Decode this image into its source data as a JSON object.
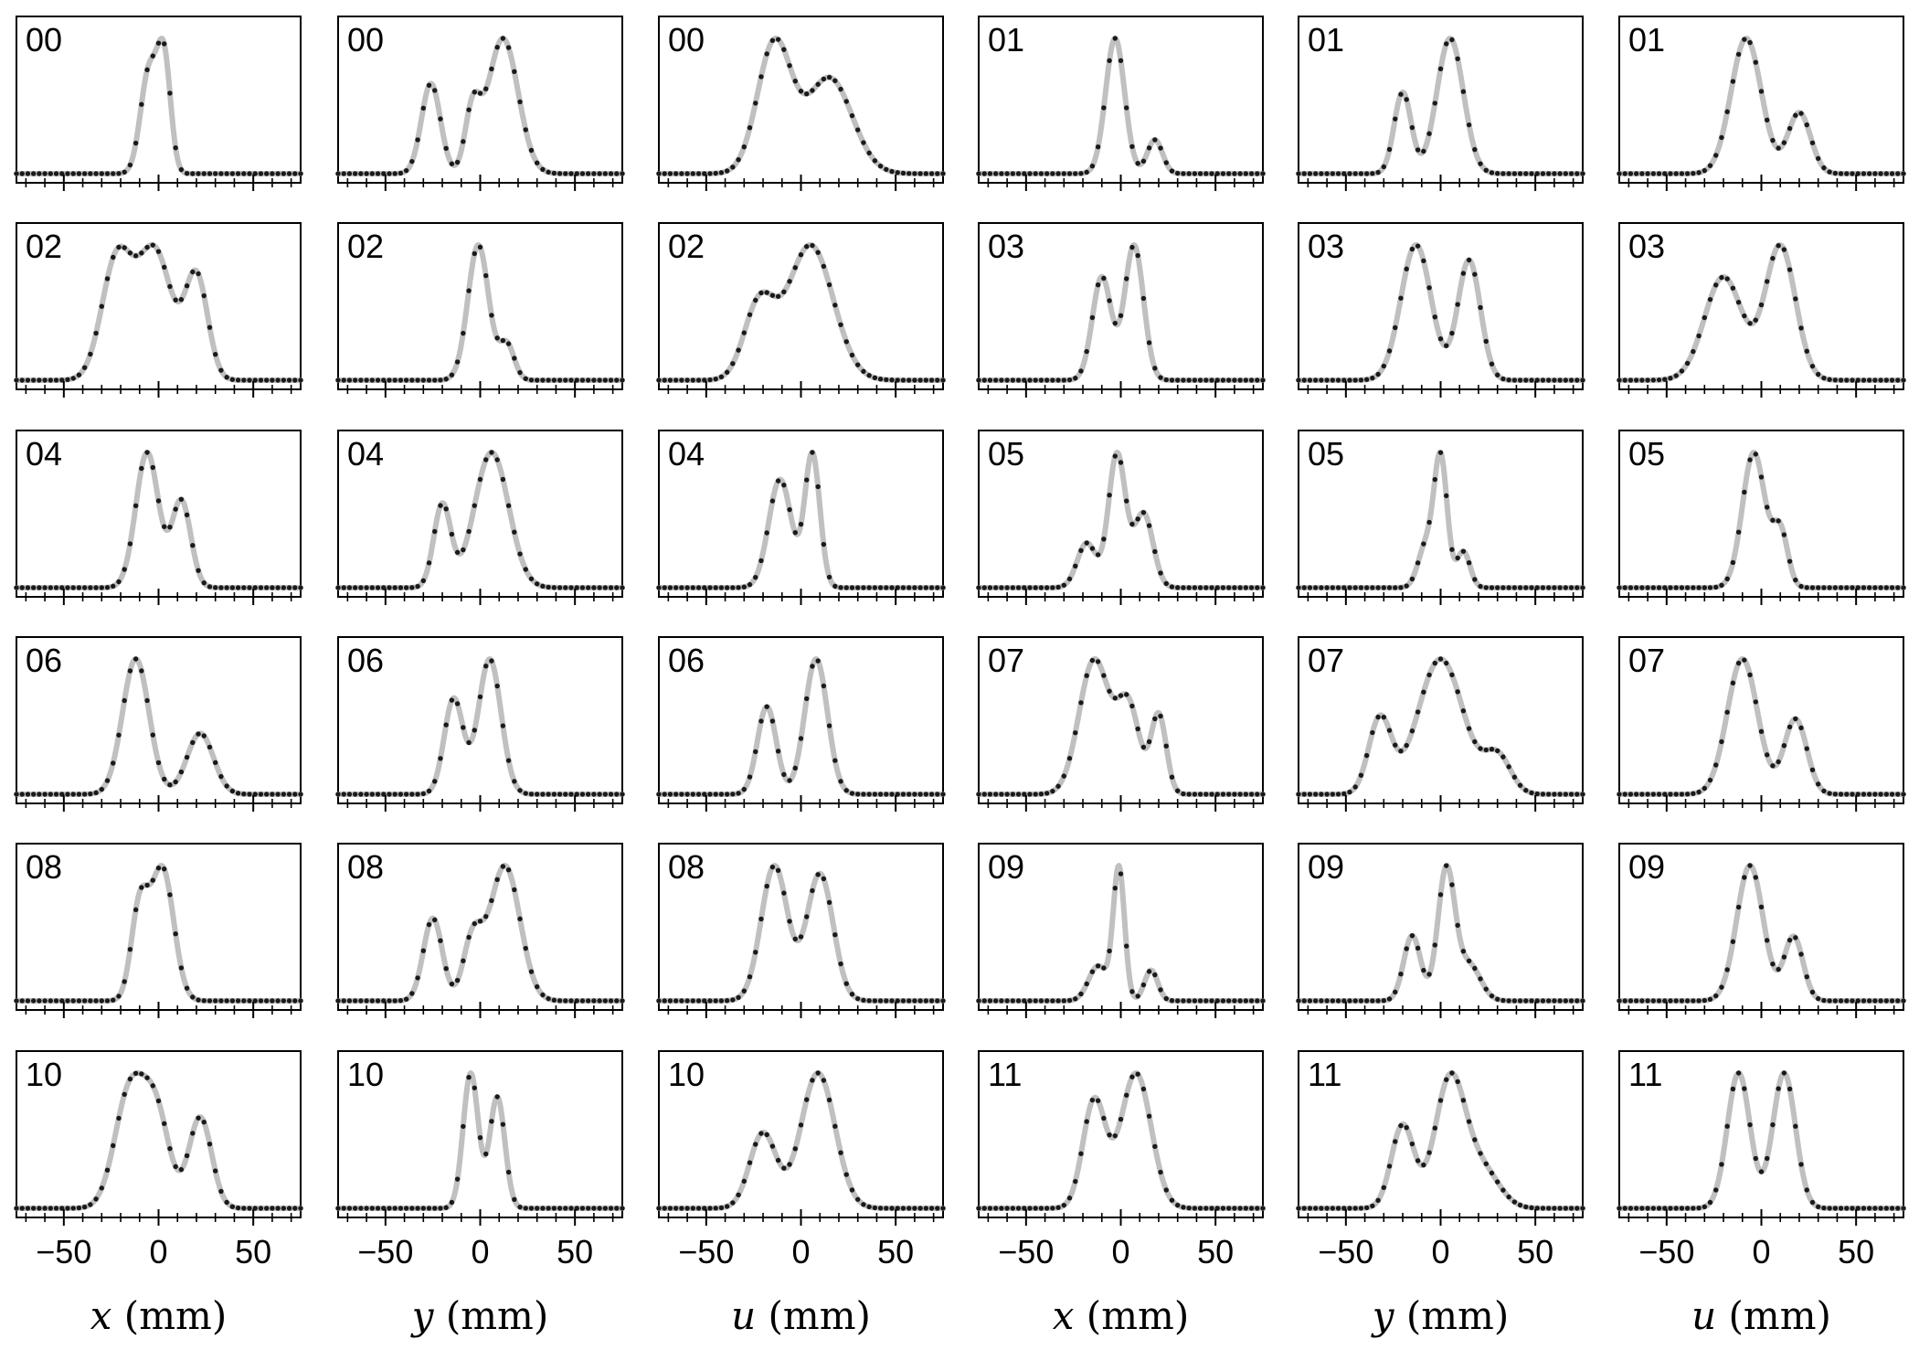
{
  "figure": {
    "column_xlabels": [
      {
        "var": "x",
        "unit": "(mm)"
      },
      {
        "var": "y",
        "unit": "(mm)"
      },
      {
        "var": "u",
        "unit": "(mm)"
      },
      {
        "var": "x",
        "unit": "(mm)"
      },
      {
        "var": "y",
        "unit": "(mm)"
      },
      {
        "var": "u",
        "unit": "(mm)"
      }
    ],
    "xtick_labels": [
      "−50",
      "0",
      "50"
    ]
  },
  "chart_data": {
    "type": "line",
    "xlim": [
      -75,
      75
    ],
    "x_major_ticks": [
      -50,
      0,
      50
    ],
    "x_minor_step": 10,
    "yticks": "none",
    "styles": {
      "fit_color": "#c0c0c0",
      "point_color": "#1a1a1a"
    },
    "panels": [
      {
        "label": "00",
        "var": "x",
        "peaks": [
          {
            "c": -5,
            "s": 4.5,
            "a": 0.8
          },
          {
            "c": 3,
            "s": 3.5,
            "a": 0.85
          }
        ]
      },
      {
        "label": "00",
        "var": "y",
        "peaks": [
          {
            "c": -26,
            "s": 5,
            "a": 0.6
          },
          {
            "c": -4,
            "s": 4,
            "a": 0.4
          },
          {
            "c": 12,
            "s": 8,
            "a": 0.9
          }
        ]
      },
      {
        "label": "00",
        "var": "u",
        "peaks": [
          {
            "c": -14,
            "s": 9,
            "a": 0.95
          },
          {
            "c": 15,
            "s": 12,
            "a": 0.7
          }
        ]
      },
      {
        "label": "01",
        "var": "x",
        "peaks": [
          {
            "c": -3,
            "s": 5,
            "a": 1.0
          },
          {
            "c": 18,
            "s": 4,
            "a": 0.25
          }
        ]
      },
      {
        "label": "01",
        "var": "y",
        "peaks": [
          {
            "c": -20,
            "s": 4.5,
            "a": 0.6
          },
          {
            "c": 5,
            "s": 7,
            "a": 1.0
          }
        ]
      },
      {
        "label": "01",
        "var": "u",
        "peaks": [
          {
            "c": -8,
            "s": 8,
            "a": 1.0
          },
          {
            "c": 20,
            "s": 6,
            "a": 0.45
          }
        ]
      },
      {
        "label": "02",
        "var": "x",
        "peaks": [
          {
            "c": -22,
            "s": 8,
            "a": 0.7
          },
          {
            "c": -2,
            "s": 9,
            "a": 0.75
          },
          {
            "c": 20,
            "s": 6,
            "a": 0.6
          }
        ]
      },
      {
        "label": "02",
        "var": "y",
        "peaks": [
          {
            "c": -1,
            "s": 5.5,
            "a": 0.95
          },
          {
            "c": 14,
            "s": 4,
            "a": 0.25
          }
        ]
      },
      {
        "label": "02",
        "var": "u",
        "peaks": [
          {
            "c": -22,
            "s": 8,
            "a": 0.5
          },
          {
            "c": 5,
            "s": 12,
            "a": 0.9
          }
        ]
      },
      {
        "label": "03",
        "var": "x",
        "peaks": [
          {
            "c": -10,
            "s": 5,
            "a": 0.65
          },
          {
            "c": 7,
            "s": 5,
            "a": 0.85
          }
        ]
      },
      {
        "label": "03",
        "var": "y",
        "peaks": [
          {
            "c": -13,
            "s": 8,
            "a": 0.88
          },
          {
            "c": 15,
            "s": 6,
            "a": 0.78
          }
        ]
      },
      {
        "label": "03",
        "var": "u",
        "peaks": [
          {
            "c": -20,
            "s": 10,
            "a": 0.6
          },
          {
            "c": 10,
            "s": 8,
            "a": 0.78
          }
        ]
      },
      {
        "label": "04",
        "var": "x",
        "peaks": [
          {
            "c": -6,
            "s": 6,
            "a": 0.7
          },
          {
            "c": 12,
            "s": 5,
            "a": 0.45
          }
        ]
      },
      {
        "label": "04",
        "var": "y",
        "peaks": [
          {
            "c": -20,
            "s": 4.5,
            "a": 0.55
          },
          {
            "c": 6,
            "s": 9,
            "a": 0.9
          }
        ]
      },
      {
        "label": "04",
        "var": "u",
        "peaks": [
          {
            "c": -11,
            "s": 6,
            "a": 0.65
          },
          {
            "c": 6,
            "s": 4,
            "a": 0.8
          }
        ]
      },
      {
        "label": "05",
        "var": "x",
        "peaks": [
          {
            "c": -18,
            "s": 5,
            "a": 0.3
          },
          {
            "c": -2,
            "s": 4.5,
            "a": 0.9
          },
          {
            "c": 12,
            "s": 5,
            "a": 0.5
          }
        ]
      },
      {
        "label": "05",
        "var": "y",
        "peaks": [
          {
            "c": -8,
            "s": 4,
            "a": 0.28
          },
          {
            "c": 0,
            "s": 3.5,
            "a": 0.9
          },
          {
            "c": 12,
            "s": 3.5,
            "a": 0.25
          }
        ]
      },
      {
        "label": "05",
        "var": "u",
        "peaks": [
          {
            "c": -4,
            "s": 6,
            "a": 0.85
          },
          {
            "c": 10,
            "s": 4,
            "a": 0.35
          }
        ]
      },
      {
        "label": "06",
        "var": "x",
        "peaks": [
          {
            "c": -12,
            "s": 7,
            "a": 1.0
          },
          {
            "c": 22,
            "s": 7,
            "a": 0.45
          }
        ]
      },
      {
        "label": "06",
        "var": "y",
        "peaks": [
          {
            "c": -14,
            "s": 5,
            "a": 0.6
          },
          {
            "c": 5,
            "s": 6,
            "a": 0.85
          }
        ]
      },
      {
        "label": "06",
        "var": "u",
        "peaks": [
          {
            "c": -18,
            "s": 5,
            "a": 0.55
          },
          {
            "c": 8,
            "s": 6,
            "a": 0.85
          }
        ]
      },
      {
        "label": "07",
        "var": "x",
        "peaks": [
          {
            "c": -14,
            "s": 8,
            "a": 0.85
          },
          {
            "c": 4,
            "s": 6,
            "a": 0.55
          },
          {
            "c": 20,
            "s": 4,
            "a": 0.5
          }
        ]
      },
      {
        "label": "07",
        "var": "y",
        "peaks": [
          {
            "c": -32,
            "s": 6,
            "a": 0.5
          },
          {
            "c": 0,
            "s": 12,
            "a": 0.9
          },
          {
            "c": 30,
            "s": 7,
            "a": 0.25
          }
        ]
      },
      {
        "label": "07",
        "var": "u",
        "peaks": [
          {
            "c": -10,
            "s": 8,
            "a": 0.9
          },
          {
            "c": 18,
            "s": 6,
            "a": 0.5
          }
        ]
      },
      {
        "label": "08",
        "var": "x",
        "peaks": [
          {
            "c": -10,
            "s": 4.5,
            "a": 0.55
          },
          {
            "c": 2,
            "s": 6,
            "a": 0.8
          }
        ]
      },
      {
        "label": "08",
        "var": "y",
        "peaks": [
          {
            "c": -25,
            "s": 5,
            "a": 0.55
          },
          {
            "c": -4,
            "s": 5,
            "a": 0.4
          },
          {
            "c": 13,
            "s": 8,
            "a": 0.9
          }
        ]
      },
      {
        "label": "08",
        "var": "u",
        "peaks": [
          {
            "c": -14,
            "s": 7,
            "a": 0.85
          },
          {
            "c": 10,
            "s": 7,
            "a": 0.8
          }
        ]
      },
      {
        "label": "09",
        "var": "x",
        "peaks": [
          {
            "c": -12,
            "s": 5,
            "a": 0.25
          },
          {
            "c": -1,
            "s": 3,
            "a": 0.95
          },
          {
            "c": 16,
            "s": 3.5,
            "a": 0.22
          }
        ]
      },
      {
        "label": "09",
        "var": "y",
        "peaks": [
          {
            "c": -15,
            "s": 4.5,
            "a": 0.45
          },
          {
            "c": 3,
            "s": 4.5,
            "a": 0.9
          },
          {
            "c": 15,
            "s": 6,
            "a": 0.25
          }
        ]
      },
      {
        "label": "09",
        "var": "u",
        "peaks": [
          {
            "c": -6,
            "s": 7,
            "a": 0.95
          },
          {
            "c": 17,
            "s": 5,
            "a": 0.45
          }
        ]
      },
      {
        "label": "10",
        "var": "x",
        "peaks": [
          {
            "c": -15,
            "s": 8,
            "a": 0.8
          },
          {
            "c": -1,
            "s": 7,
            "a": 0.6
          },
          {
            "c": 22,
            "s": 6,
            "a": 0.62
          }
        ]
      },
      {
        "label": "10",
        "var": "y",
        "peaks": [
          {
            "c": -5,
            "s": 4,
            "a": 0.85
          },
          {
            "c": 9,
            "s": 4,
            "a": 0.7
          }
        ]
      },
      {
        "label": "10",
        "var": "u",
        "peaks": [
          {
            "c": -20,
            "s": 7,
            "a": 0.5
          },
          {
            "c": 9,
            "s": 9,
            "a": 0.9
          }
        ]
      },
      {
        "label": "11",
        "var": "x",
        "peaks": [
          {
            "c": -14,
            "s": 6,
            "a": 0.7
          },
          {
            "c": 8,
            "s": 8,
            "a": 0.88
          }
        ]
      },
      {
        "label": "11",
        "var": "y",
        "peaks": [
          {
            "c": -20,
            "s": 6,
            "a": 0.55
          },
          {
            "c": 5,
            "s": 8,
            "a": 0.85
          },
          {
            "c": 22,
            "s": 9,
            "a": 0.25
          }
        ]
      },
      {
        "label": "11",
        "var": "u",
        "peaks": [
          {
            "c": -12,
            "s": 6,
            "a": 0.85
          },
          {
            "c": 12,
            "s": 6,
            "a": 0.85
          }
        ]
      }
    ]
  }
}
